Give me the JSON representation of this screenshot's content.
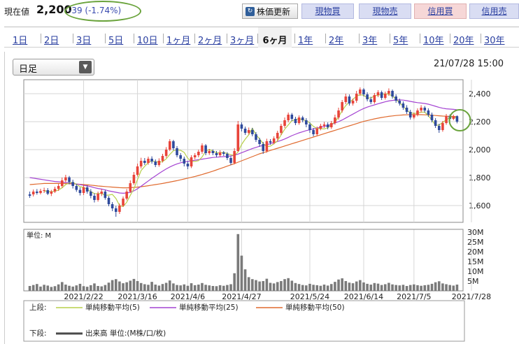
{
  "price": {
    "label": "現在値",
    "value": "2,200",
    "change": "-39 (-1.74%)"
  },
  "buttons": {
    "refresh": "株価更新",
    "cash_buy": "現物買",
    "cash_sell": "現物売",
    "margin_buy": "信用買",
    "margin_sell": "信用売"
  },
  "tabs": [
    "1日",
    "2日",
    "3日",
    "5日",
    "10日",
    "1ヶ月",
    "2ヶ月",
    "3ヶ月",
    "6ヶ月",
    "1年",
    "2年",
    "3年",
    "5年",
    "10年",
    "20年",
    "30年"
  ],
  "active_tab": "6ヶ月",
  "chart_controls": {
    "interval": "日足",
    "timestamp": "21/07/28 15:00"
  },
  "colors": {
    "up": "#e8443a",
    "down": "#2f4a9c",
    "ma5": "#b7cf4a",
    "ma25": "#a443d2",
    "ma50": "#e06a2e",
    "volume": "#4a4a4a",
    "highlight": "#6aa33c"
  },
  "chart_data": {
    "type": "candlestick",
    "price_axis": {
      "ticks": [
        "2,400",
        "2,200",
        "2,000",
        "1,800",
        "1,600"
      ],
      "tick_values": [
        2400,
        2200,
        2000,
        1800,
        1600
      ],
      "range": [
        1480,
        2500
      ]
    },
    "volume_axis": {
      "label": "単位: M",
      "ticks": [
        "30M",
        "25M",
        "20M",
        "15M",
        "10M",
        "5M"
      ],
      "tick_values": [
        30,
        25,
        20,
        15,
        10,
        5
      ],
      "range": [
        0,
        30
      ]
    },
    "x_ticks": [
      "2021/2/22",
      "2021/3/16",
      "2021/4/6",
      "2021/4/27",
      "2021/5/24",
      "2021/6/14",
      "2021/7/5",
      "2021/7/28"
    ],
    "x_tick_positions": [
      15,
      30,
      44,
      59,
      78,
      93,
      107,
      123
    ],
    "candles": [
      [
        1680,
        1670,
        1700,
        1655
      ],
      [
        1680,
        1700,
        1715,
        1665
      ],
      [
        1700,
        1690,
        1718,
        1678
      ],
      [
        1690,
        1705,
        1720,
        1680
      ],
      [
        1705,
        1710,
        1728,
        1690
      ],
      [
        1710,
        1685,
        1725,
        1675
      ],
      [
        1685,
        1700,
        1712,
        1668
      ],
      [
        1700,
        1720,
        1735,
        1690
      ],
      [
        1720,
        1740,
        1755,
        1705
      ],
      [
        1740,
        1780,
        1800,
        1728
      ],
      [
        1780,
        1802,
        1820,
        1765
      ],
      [
        1802,
        1768,
        1812,
        1752
      ],
      [
        1768,
        1740,
        1785,
        1722
      ],
      [
        1740,
        1712,
        1755,
        1698
      ],
      [
        1712,
        1690,
        1730,
        1672
      ],
      [
        1690,
        1730,
        1750,
        1675
      ],
      [
        1730,
        1700,
        1745,
        1685
      ],
      [
        1700,
        1670,
        1718,
        1652
      ],
      [
        1670,
        1640,
        1688,
        1622
      ],
      [
        1640,
        1685,
        1700,
        1628
      ],
      [
        1685,
        1700,
        1718,
        1668
      ],
      [
        1700,
        1655,
        1712,
        1642
      ],
      [
        1655,
        1610,
        1668,
        1595
      ],
      [
        1610,
        1580,
        1625,
        1560
      ],
      [
        1580,
        1555,
        1598,
        1520
      ],
      [
        1555,
        1600,
        1615,
        1540
      ],
      [
        1600,
        1650,
        1665,
        1590
      ],
      [
        1650,
        1700,
        1718,
        1638
      ],
      [
        1700,
        1760,
        1780,
        1690
      ],
      [
        1760,
        1820,
        1840,
        1748
      ],
      [
        1820,
        1880,
        1900,
        1808
      ],
      [
        1880,
        1920,
        1942,
        1865
      ],
      [
        1920,
        1905,
        1940,
        1890
      ],
      [
        1905,
        1935,
        1950,
        1892
      ],
      [
        1935,
        1915,
        1952,
        1900
      ],
      [
        1915,
        1890,
        1930,
        1875
      ],
      [
        1890,
        1920,
        1938,
        1878
      ],
      [
        1920,
        1955,
        1970,
        1908
      ],
      [
        1955,
        2000,
        2018,
        1942
      ],
      [
        2000,
        2060,
        2075,
        1990
      ],
      [
        2060,
        2010,
        2070,
        1995
      ],
      [
        2010,
        1960,
        2025,
        1945
      ],
      [
        1960,
        1935,
        1975,
        1915
      ],
      [
        1935,
        1900,
        1950,
        1880
      ],
      [
        1900,
        1880,
        1918,
        1860
      ],
      [
        1880,
        1945,
        1960,
        1868
      ],
      [
        1945,
        1960,
        1975,
        1930
      ],
      [
        1960,
        1985,
        2000,
        1945
      ],
      [
        1985,
        2030,
        2045,
        1970
      ],
      [
        2030,
        1975,
        2040,
        1960
      ],
      [
        1975,
        1990,
        2005,
        1962
      ],
      [
        1990,
        1975,
        2002,
        1960
      ],
      [
        1975,
        1960,
        1990,
        1945
      ],
      [
        1960,
        1980,
        1995,
        1948
      ],
      [
        1980,
        1970,
        1990,
        1955
      ],
      [
        1970,
        1940,
        1982,
        1925
      ],
      [
        1940,
        1905,
        1952,
        1890
      ],
      [
        1905,
        1990,
        2010,
        1895
      ],
      [
        1990,
        2180,
        2205,
        1985
      ],
      [
        2180,
        2150,
        2195,
        2130
      ],
      [
        2150,
        2120,
        2165,
        2105
      ],
      [
        2120,
        2140,
        2158,
        2108
      ],
      [
        2140,
        2110,
        2155,
        2095
      ],
      [
        2110,
        2070,
        2125,
        2055
      ],
      [
        2070,
        2040,
        2085,
        2020
      ],
      [
        2040,
        1990,
        2055,
        1970
      ],
      [
        1990,
        2060,
        2078,
        1978
      ],
      [
        2060,
        2050,
        2075,
        2035
      ],
      [
        2050,
        2080,
        2095,
        2038
      ],
      [
        2080,
        2120,
        2135,
        2065
      ],
      [
        2120,
        2170,
        2185,
        2105
      ],
      [
        2170,
        2210,
        2230,
        2155
      ],
      [
        2210,
        2250,
        2265,
        2195
      ],
      [
        2250,
        2220,
        2262,
        2205
      ],
      [
        2220,
        2190,
        2235,
        2175
      ],
      [
        2190,
        2230,
        2245,
        2178
      ],
      [
        2230,
        2210,
        2242,
        2195
      ],
      [
        2210,
        2180,
        2225,
        2160
      ],
      [
        2180,
        2140,
        2195,
        2120
      ],
      [
        2140,
        2110,
        2155,
        2095
      ],
      [
        2110,
        2150,
        2165,
        2098
      ],
      [
        2150,
        2170,
        2185,
        2138
      ],
      [
        2170,
        2180,
        2198,
        2155
      ],
      [
        2180,
        2160,
        2195,
        2145
      ],
      [
        2160,
        2190,
        2205,
        2148
      ],
      [
        2190,
        2230,
        2250,
        2178
      ],
      [
        2230,
        2280,
        2300,
        2215
      ],
      [
        2280,
        2340,
        2355,
        2265
      ],
      [
        2340,
        2380,
        2400,
        2325
      ],
      [
        2380,
        2330,
        2395,
        2315
      ],
      [
        2330,
        2350,
        2365,
        2315
      ],
      [
        2350,
        2400,
        2420,
        2335
      ],
      [
        2400,
        2430,
        2445,
        2385
      ],
      [
        2430,
        2395,
        2440,
        2380
      ],
      [
        2395,
        2360,
        2410,
        2345
      ],
      [
        2360,
        2340,
        2378,
        2325
      ],
      [
        2340,
        2390,
        2405,
        2328
      ],
      [
        2390,
        2410,
        2425,
        2375
      ],
      [
        2410,
        2370,
        2422,
        2355
      ],
      [
        2370,
        2400,
        2415,
        2358
      ],
      [
        2400,
        2420,
        2438,
        2385
      ],
      [
        2420,
        2380,
        2430,
        2365
      ],
      [
        2380,
        2350,
        2395,
        2335
      ],
      [
        2350,
        2330,
        2365,
        2315
      ],
      [
        2330,
        2300,
        2345,
        2285
      ],
      [
        2300,
        2270,
        2318,
        2255
      ],
      [
        2270,
        2230,
        2285,
        2215
      ],
      [
        2230,
        2250,
        2265,
        2218
      ],
      [
        2250,
        2280,
        2295,
        2238
      ],
      [
        2280,
        2300,
        2318,
        2265
      ],
      [
        2300,
        2280,
        2312,
        2265
      ],
      [
        2280,
        2250,
        2295,
        2235
      ],
      [
        2250,
        2210,
        2265,
        2195
      ],
      [
        2210,
        2170,
        2225,
        2155
      ],
      [
        2170,
        2140,
        2185,
        2120
      ],
      [
        2140,
        2190,
        2205,
        2128
      ],
      [
        2190,
        2240,
        2255,
        2178
      ],
      [
        2240,
        2220,
        2252,
        2205
      ],
      [
        2220,
        2239,
        2250,
        2210
      ],
      [
        2239,
        2200,
        2245,
        2188
      ]
    ],
    "volumes": [
      2.5,
      3.0,
      3.5,
      2.2,
      3.1,
      2.7,
      2.0,
      2.4,
      3.3,
      4.5,
      3.2,
      2.6,
      2.2,
      2.8,
      3.6,
      2.4,
      2.1,
      2.9,
      3.8,
      2.5,
      2.3,
      3.0,
      4.2,
      5.5,
      6.0,
      4.8,
      3.9,
      4.4,
      5.2,
      6.1,
      5.0,
      4.0,
      3.4,
      3.1,
      4.6,
      3.2,
      2.7,
      3.5,
      4.1,
      5.3,
      3.8,
      3.0,
      2.8,
      3.3,
      2.6,
      3.9,
      2.9,
      3.2,
      4.0,
      3.1,
      2.8,
      2.5,
      2.4,
      2.9,
      2.6,
      3.0,
      3.4,
      9.0,
      29.0,
      18.0,
      11.0,
      7.0,
      6.0,
      5.5,
      4.8,
      5.0,
      6.2,
      4.1,
      3.8,
      4.5,
      5.0,
      6.0,
      6.5,
      5.2,
      4.0,
      3.5,
      3.0,
      2.8,
      3.6,
      3.1,
      2.9,
      2.6,
      3.2,
      2.7,
      3.5,
      4.6,
      5.8,
      6.4,
      5.0,
      4.2,
      3.9,
      4.8,
      5.5,
      4.3,
      3.6,
      3.2,
      4.0,
      3.7,
      3.0,
      3.4,
      4.1,
      3.3,
      3.0,
      2.8,
      3.1,
      2.5,
      3.0,
      3.3,
      2.9,
      2.6,
      2.9,
      3.1,
      3.6,
      4.4,
      4.9,
      3.8,
      3.4,
      3.0,
      2.7,
      3.2
    ],
    "ma5": [
      null,
      null,
      null,
      null,
      1703,
      1703,
      1698,
      1703,
      1711,
      1727,
      1750,
      1762,
      1766,
      1752,
      1735,
      1730,
      1717,
      1700,
      1686,
      1685,
      1687,
      1673,
      1675,
      1680,
      1650,
      1600,
      1593,
      1624,
      1673,
      1720,
      1786,
      1850,
      1880,
      1907,
      1920,
      1913,
      1910,
      1914,
      1934,
      1966,
      1992,
      1999,
      1995,
      1980,
      1938,
      1916,
      1916,
      1921,
      1948,
      1990,
      2000,
      1991,
      1977,
      1977,
      1980,
      1972,
      1963,
      1958,
      1983,
      2037,
      2075,
      2106,
      2153,
      2107,
      2077,
      2043,
      2022,
      2025,
      2042,
      2063,
      2105,
      2146,
      2177,
      2207,
      2213,
      2222,
      2213,
      2207,
      2191,
      2166,
      2152,
      2150,
      2148,
      2156,
      2177,
      2199,
      2233,
      2279,
      2315,
      2339,
      2359,
      2383,
      2393,
      2388,
      2371,
      2368,
      2385,
      2389,
      2394,
      2400,
      2396,
      2384,
      2361,
      2334,
      2310,
      2280,
      2265,
      2258,
      2262,
      2268,
      2268,
      2242,
      2212,
      2174,
      2176,
      2195,
      2213,
      2228,
      2238,
      2220
    ],
    "ma25": [
      1800,
      1796,
      1792,
      1788,
      1784,
      1780,
      1776,
      1772,
      1770,
      1768,
      1765,
      1762,
      1758,
      1754,
      1750,
      1745,
      1740,
      1735,
      1728,
      1722,
      1718,
      1712,
      1705,
      1700,
      1695,
      1690,
      1688,
      1690,
      1695,
      1705,
      1720,
      1738,
      1757,
      1776,
      1795,
      1812,
      1830,
      1846,
      1862,
      1876,
      1888,
      1898,
      1906,
      1912,
      1916,
      1920,
      1924,
      1928,
      1932,
      1936,
      1940,
      1944,
      1946,
      1948,
      1950,
      1952,
      1955,
      1960,
      1968,
      1978,
      1988,
      1998,
      2008,
      2016,
      2024,
      2030,
      2036,
      2042,
      2050,
      2058,
      2066,
      2076,
      2088,
      2100,
      2110,
      2120,
      2128,
      2136,
      2142,
      2148,
      2154,
      2160,
      2166,
      2172,
      2180,
      2190,
      2200,
      2212,
      2226,
      2240,
      2254,
      2268,
      2282,
      2294,
      2304,
      2312,
      2320,
      2328,
      2335,
      2342,
      2348,
      2352,
      2355,
      2356,
      2354,
      2350,
      2345,
      2340,
      2336,
      2333,
      2330,
      2325,
      2318,
      2310,
      2302,
      2296,
      2292,
      2290,
      2288,
      2285
    ],
    "ma50": [
      1750,
      1752,
      1754,
      1756,
      1758,
      1758,
      1758,
      1758,
      1758,
      1758,
      1757,
      1756,
      1755,
      1754,
      1752,
      1750,
      1748,
      1746,
      1743,
      1740,
      1738,
      1736,
      1734,
      1732,
      1730,
      1728,
      1727,
      1727,
      1728,
      1730,
      1732,
      1735,
      1738,
      1742,
      1746,
      1750,
      1754,
      1758,
      1763,
      1768,
      1773,
      1778,
      1784,
      1790,
      1796,
      1802,
      1808,
      1815,
      1822,
      1830,
      1838,
      1846,
      1855,
      1864,
      1873,
      1882,
      1891,
      1900,
      1910,
      1920,
      1930,
      1940,
      1950,
      1960,
      1970,
      1978,
      1986,
      1994,
      2002,
      2010,
      2018,
      2026,
      2034,
      2042,
      2050,
      2058,
      2066,
      2074,
      2082,
      2090,
      2098,
      2106,
      2114,
      2122,
      2130,
      2138,
      2146,
      2154,
      2162,
      2170,
      2178,
      2186,
      2194,
      2202,
      2208,
      2214,
      2220,
      2225,
      2230,
      2234,
      2238,
      2241,
      2244,
      2246,
      2248,
      2249,
      2250,
      2250,
      2250,
      2250,
      2249,
      2248,
      2246,
      2244,
      2242,
      2240,
      2239,
      2238,
      2237,
      2236
    ]
  },
  "legend": {
    "upper_label": "上段:",
    "lower_label": "下段:",
    "items": [
      {
        "label": "単純移動平均(5)"
      },
      {
        "label": "単純移動平均(25)"
      },
      {
        "label": "単純移動平均(50)"
      }
    ],
    "volume_label": "出来高 単位:(M株/口/枚)"
  }
}
